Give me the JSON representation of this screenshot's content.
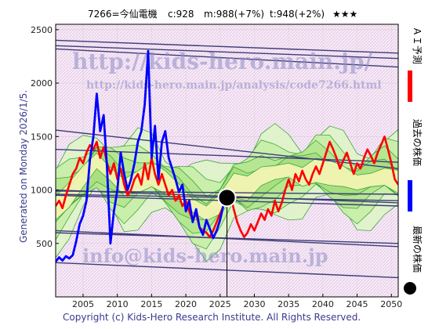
{
  "header": {
    "code_name": "7266=今仙電機",
    "current": "c:928",
    "median": "m:988(+7%)",
    "target": "t:948(+2%)",
    "stars": "★★★"
  },
  "side_text": "Generated on Monday 2026/1/5.",
  "footer": "Copyright (c) Kids-Hero Research Institute. All Rights Reserved.",
  "watermarks": {
    "url_main": "http://kids-hero.main.jp/",
    "url_analysis": "http://kids-hero.main.jp/analysis/code7266.html",
    "email": "info@kids-hero.main.jp"
  },
  "legend": {
    "ai_forecast": "ＡＩ予測",
    "past_price": "過去の株価",
    "latest_price": "最新の株価",
    "colors": {
      "ai_forecast": "#ff0000",
      "past_price": "#0000ff",
      "latest_price": "#000000"
    }
  },
  "chart_data": {
    "type": "line",
    "xlim": [
      2001,
      2051
    ],
    "ylim": [
      0,
      2550
    ],
    "x_ticks": [
      2005,
      2010,
      2015,
      2020,
      2025,
      2030,
      2035,
      2040,
      2045,
      2050
    ],
    "y_ticks": [
      500,
      1000,
      1500,
      2000,
      2500
    ],
    "grid": true,
    "latest_point": {
      "x": 2026.0,
      "y": 928
    },
    "past_price": [
      [
        2001.0,
        330
      ],
      [
        2001.5,
        370
      ],
      [
        2002.0,
        340
      ],
      [
        2002.5,
        380
      ],
      [
        2003.0,
        360
      ],
      [
        2003.5,
        390
      ],
      [
        2004.0,
        520
      ],
      [
        2004.5,
        680
      ],
      [
        2005.0,
        760
      ],
      [
        2005.5,
        900
      ],
      [
        2006.0,
        1280
      ],
      [
        2006.5,
        1500
      ],
      [
        2007.0,
        1900
      ],
      [
        2007.5,
        1550
      ],
      [
        2008.0,
        1700
      ],
      [
        2008.5,
        1200
      ],
      [
        2009.0,
        500
      ],
      [
        2009.5,
        800
      ],
      [
        2010.0,
        1000
      ],
      [
        2010.5,
        1350
      ],
      [
        2011.0,
        1150
      ],
      [
        2011.5,
        1000
      ],
      [
        2012.0,
        1100
      ],
      [
        2012.5,
        1250
      ],
      [
        2013.0,
        1450
      ],
      [
        2013.5,
        1550
      ],
      [
        2014.0,
        1800
      ],
      [
        2014.5,
        2300
      ],
      [
        2015.0,
        1300
      ],
      [
        2015.5,
        1600
      ],
      [
        2016.0,
        1100
      ],
      [
        2016.5,
        1450
      ],
      [
        2017.0,
        1550
      ],
      [
        2017.5,
        1300
      ],
      [
        2018.0,
        1200
      ],
      [
        2018.5,
        1100
      ],
      [
        2019.0,
        980
      ],
      [
        2019.5,
        1050
      ],
      [
        2020.0,
        800
      ],
      [
        2020.5,
        900
      ],
      [
        2021.0,
        700
      ],
      [
        2021.5,
        820
      ],
      [
        2022.0,
        650
      ],
      [
        2022.5,
        580
      ],
      [
        2023.0,
        720
      ],
      [
        2023.5,
        640
      ],
      [
        2024.0,
        550
      ],
      [
        2024.5,
        620
      ],
      [
        2025.0,
        720
      ],
      [
        2025.5,
        860
      ],
      [
        2026.0,
        928
      ]
    ],
    "ai_forecast": [
      [
        2001.0,
        850
      ],
      [
        2001.5,
        900
      ],
      [
        2002.0,
        830
      ],
      [
        2002.5,
        950
      ],
      [
        2003.0,
        1050
      ],
      [
        2003.5,
        1150
      ],
      [
        2004.0,
        1200
      ],
      [
        2004.5,
        1300
      ],
      [
        2005.0,
        1250
      ],
      [
        2005.5,
        1350
      ],
      [
        2006.0,
        1420
      ],
      [
        2006.5,
        1380
      ],
      [
        2007.0,
        1450
      ],
      [
        2007.5,
        1300
      ],
      [
        2008.0,
        1400
      ],
      [
        2008.5,
        1250
      ],
      [
        2009.0,
        1150
      ],
      [
        2009.5,
        1250
      ],
      [
        2010.0,
        1100
      ],
      [
        2010.5,
        1200
      ],
      [
        2011.0,
        1050
      ],
      [
        2011.5,
        950
      ],
      [
        2012.0,
        1000
      ],
      [
        2012.5,
        1100
      ],
      [
        2013.0,
        1150
      ],
      [
        2013.5,
        1050
      ],
      [
        2014.0,
        1250
      ],
      [
        2014.5,
        1100
      ],
      [
        2015.0,
        1300
      ],
      [
        2015.5,
        1150
      ],
      [
        2016.0,
        1050
      ],
      [
        2016.5,
        1150
      ],
      [
        2017.0,
        1050
      ],
      [
        2017.5,
        950
      ],
      [
        2018.0,
        1000
      ],
      [
        2018.5,
        900
      ],
      [
        2019.0,
        950
      ],
      [
        2019.5,
        850
      ],
      [
        2020.0,
        900
      ],
      [
        2020.5,
        800
      ],
      [
        2021.0,
        720
      ],
      [
        2021.5,
        780
      ],
      [
        2022.0,
        650
      ],
      [
        2022.5,
        620
      ],
      [
        2023.0,
        600
      ],
      [
        2023.5,
        560
      ],
      [
        2024.0,
        620
      ],
      [
        2024.5,
        700
      ],
      [
        2025.0,
        780
      ],
      [
        2025.5,
        850
      ],
      [
        2026.0,
        900
      ],
      [
        2026.5,
        950
      ],
      [
        2027.0,
        820
      ],
      [
        2027.5,
        700
      ],
      [
        2028.0,
        620
      ],
      [
        2028.5,
        560
      ],
      [
        2029.0,
        600
      ],
      [
        2029.5,
        680
      ],
      [
        2030.0,
        620
      ],
      [
        2030.5,
        700
      ],
      [
        2031.0,
        780
      ],
      [
        2031.5,
        720
      ],
      [
        2032.0,
        820
      ],
      [
        2032.5,
        760
      ],
      [
        2033.0,
        900
      ],
      [
        2033.5,
        800
      ],
      [
        2034.0,
        880
      ],
      [
        2034.5,
        1000
      ],
      [
        2035.0,
        1100
      ],
      [
        2035.5,
        1000
      ],
      [
        2036.0,
        1150
      ],
      [
        2036.5,
        1080
      ],
      [
        2037.0,
        1180
      ],
      [
        2037.5,
        1100
      ],
      [
        2038.0,
        1050
      ],
      [
        2038.5,
        1150
      ],
      [
        2039.0,
        1220
      ],
      [
        2039.5,
        1150
      ],
      [
        2040.0,
        1250
      ],
      [
        2040.5,
        1350
      ],
      [
        2041.0,
        1450
      ],
      [
        2041.5,
        1380
      ],
      [
        2042.0,
        1300
      ],
      [
        2042.5,
        1200
      ],
      [
        2043.0,
        1280
      ],
      [
        2043.5,
        1350
      ],
      [
        2044.0,
        1250
      ],
      [
        2044.5,
        1150
      ],
      [
        2045.0,
        1250
      ],
      [
        2045.5,
        1200
      ],
      [
        2046.0,
        1300
      ],
      [
        2046.5,
        1380
      ],
      [
        2047.0,
        1320
      ],
      [
        2047.5,
        1250
      ],
      [
        2048.0,
        1350
      ],
      [
        2048.5,
        1420
      ],
      [
        2049.0,
        1500
      ],
      [
        2049.5,
        1380
      ],
      [
        2050.0,
        1250
      ],
      [
        2050.5,
        1100
      ],
      [
        2051.0,
        1050
      ]
    ],
    "band_center": [
      [
        2001.0,
        850
      ],
      [
        2003.0,
        950
      ],
      [
        2005.0,
        1100
      ],
      [
        2007.0,
        1250
      ],
      [
        2009.0,
        1150
      ],
      [
        2011.0,
        1050
      ],
      [
        2013.0,
        1100
      ],
      [
        2015.0,
        1150
      ],
      [
        2017.0,
        1050
      ],
      [
        2019.0,
        950
      ],
      [
        2021.0,
        850
      ],
      [
        2023.0,
        800
      ],
      [
        2025.0,
        900
      ],
      [
        2027.0,
        1050
      ],
      [
        2029.0,
        1000
      ],
      [
        2031.0,
        1100
      ],
      [
        2033.0,
        1150
      ],
      [
        2035.0,
        1200
      ],
      [
        2037.0,
        1150
      ],
      [
        2039.0,
        1200
      ],
      [
        2041.0,
        1150
      ],
      [
        2043.0,
        1100
      ],
      [
        2045.0,
        1050
      ],
      [
        2047.0,
        1100
      ],
      [
        2049.0,
        1150
      ],
      [
        2051.0,
        1100
      ]
    ],
    "trend_lines": [
      [
        [
          2001,
          2350
        ],
        [
          2051,
          2230
        ]
      ],
      [
        [
          2001,
          2320
        ],
        [
          2051,
          2150
        ]
      ],
      [
        [
          2001,
          1560
        ],
        [
          2051,
          1200
        ]
      ],
      [
        [
          2001,
          1380
        ],
        [
          2051,
          1260
        ]
      ],
      [
        [
          2001,
          1000
        ],
        [
          2051,
          880
        ]
      ],
      [
        [
          2001,
          990
        ],
        [
          2051,
          960
        ]
      ],
      [
        [
          2001,
          960
        ],
        [
          2051,
          900
        ]
      ],
      [
        [
          2001,
          950
        ],
        [
          2051,
          850
        ]
      ],
      [
        [
          2001,
          620
        ],
        [
          2051,
          470
        ]
      ],
      [
        [
          2001,
          600
        ],
        [
          2051,
          500
        ]
      ],
      [
        [
          2001,
          320
        ],
        [
          2051,
          180
        ]
      ],
      [
        [
          2001,
          2400
        ],
        [
          2051,
          2280
        ]
      ]
    ]
  }
}
